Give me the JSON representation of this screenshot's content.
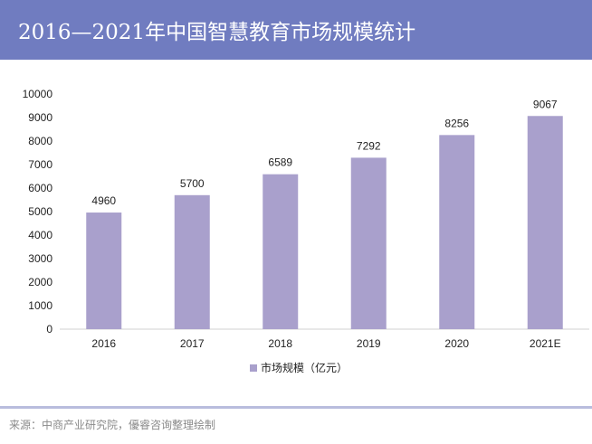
{
  "header": {
    "title": "2016—2021年中国智慧教育市场规模统计"
  },
  "chart_data": {
    "type": "bar",
    "title": "2016—2021年中国智慧教育市场规模统计",
    "categories": [
      "2016",
      "2017",
      "2018",
      "2019",
      "2020",
      "2021E"
    ],
    "series": [
      {
        "name": "市场规模（亿元）",
        "values": [
          4960,
          5700,
          6589,
          7292,
          8256,
          9067
        ],
        "color": "#a9a0cc"
      }
    ],
    "ylim": [
      0,
      10000
    ],
    "yticks": [
      "0",
      "1000",
      "2000",
      "3000",
      "4000",
      "5000",
      "6000",
      "7000",
      "8000",
      "9000",
      "10000"
    ],
    "xlabel": "",
    "ylabel": "",
    "grid": false,
    "legend": "bottom"
  },
  "footer": {
    "source": "来源：中商产业研究院，優睿咨询整理绘制"
  },
  "colors": {
    "header_bg": "#707cc0",
    "bar": "#a9a0cc",
    "axis": "#d0d0d0",
    "text": "#222222"
  }
}
